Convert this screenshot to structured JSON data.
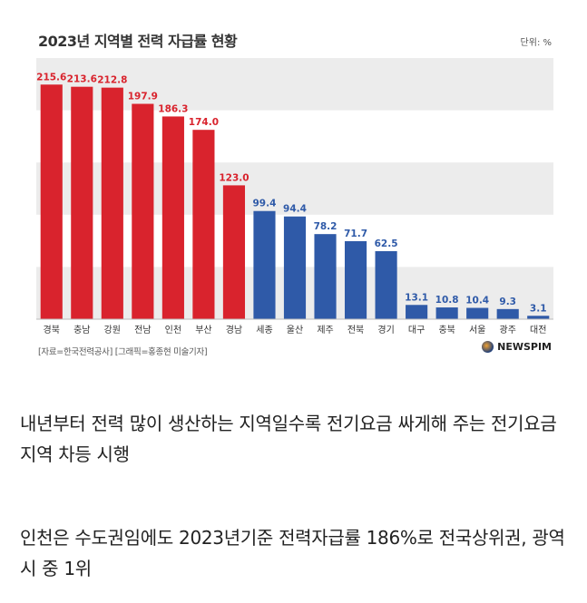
{
  "chart_data": {
    "type": "bar",
    "title": "2023년 지역별 전력 자급률 현황",
    "unit": "단위: %",
    "categories": [
      "경북",
      "충남",
      "강원",
      "전남",
      "인천",
      "부산",
      "경남",
      "세종",
      "울산",
      "제주",
      "전북",
      "경기",
      "대구",
      "충북",
      "서울",
      "광주",
      "대전"
    ],
    "values": [
      215.6,
      213.6,
      212.8,
      197.9,
      186.3,
      174.0,
      123.0,
      99.4,
      94.4,
      78.2,
      71.7,
      62.5,
      13.1,
      10.8,
      10.4,
      9.3,
      3.1
    ],
    "value_labels": [
      "215.6",
      "213.6",
      "212.8",
      "197.9",
      "186.3",
      "174.0",
      "123.0",
      "99.4",
      "94.4",
      "78.2",
      "71.7",
      "62.5",
      "13.1",
      "10.8",
      "10.4",
      "9.3",
      "3.1"
    ],
    "ylim": [
      0,
      240
    ],
    "colors": {
      "above_100": "#d9232d",
      "below_100": "#2f5aa8",
      "band": "#ececec"
    },
    "source": "[자료=한국전력공사] [그래픽=홍종현 미술기자]",
    "logo": "NEWSPIM"
  },
  "captions": [
    "내년부터 전력 많이 생산하는 지역일수록 전기요금 싸게해 주는 전기요금 지역 차등 시행",
    "인천은 수도권임에도 2023년기준 전력자급률 186%로 전국상위권, 광역시 중 1위"
  ]
}
